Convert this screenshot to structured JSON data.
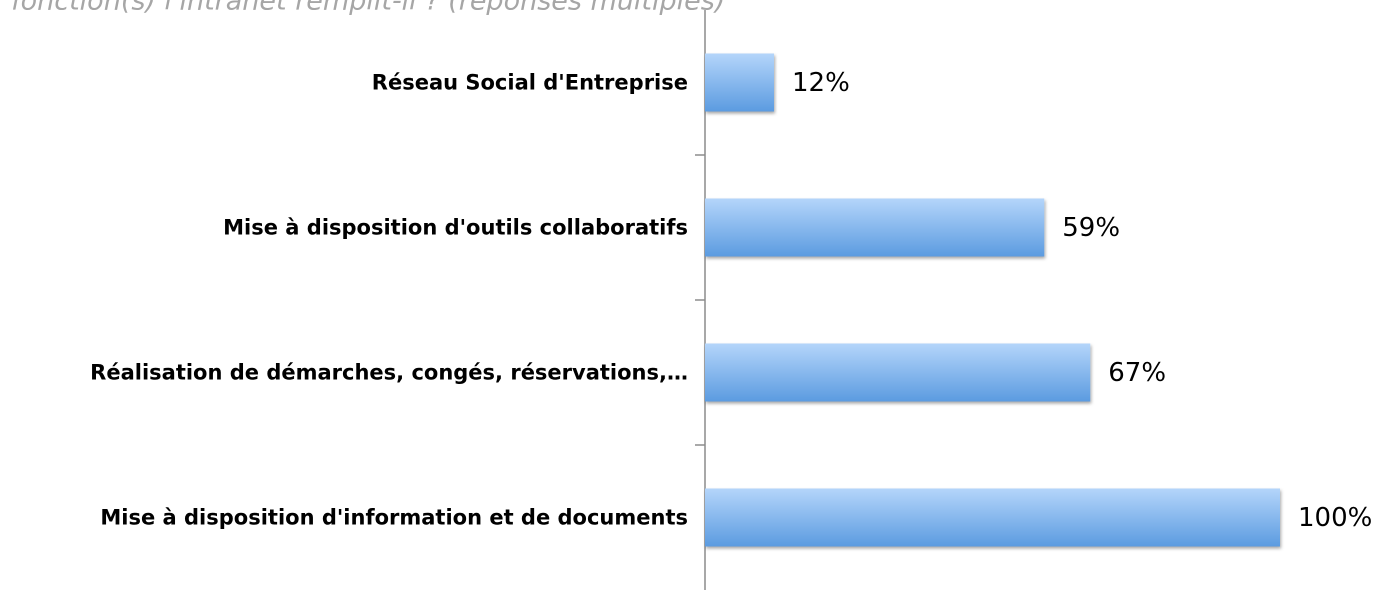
{
  "chart_data": {
    "type": "bar",
    "orientation": "horizontal",
    "title": ") fonction(s) l'intranet remplit-il ? (réponses multiples)",
    "categories": [
      "Réseau Social d'Entreprise",
      "Mise à disposition d'outils collaboratifs",
      "Réalisation de démarches, congés, réservations,…",
      "Mise à disposition d'information et de documents"
    ],
    "values": [
      12,
      59,
      67,
      100
    ],
    "value_labels": [
      "12%",
      "59%",
      "67%",
      "100%"
    ],
    "color": "#5b9be0",
    "xlim": [
      0,
      100
    ]
  }
}
